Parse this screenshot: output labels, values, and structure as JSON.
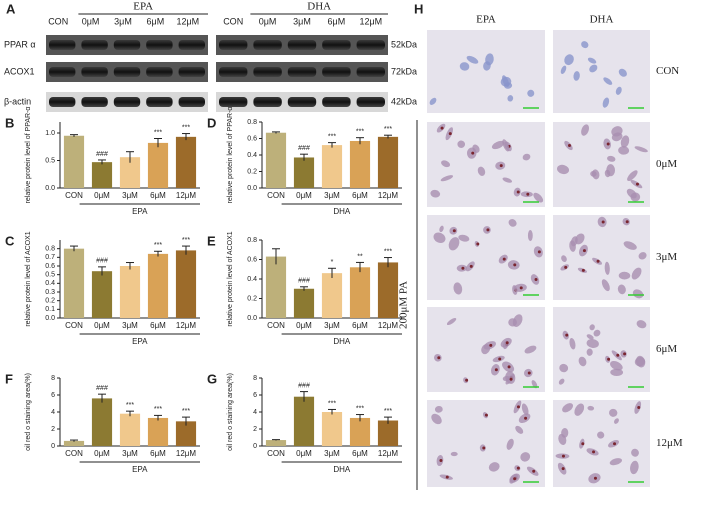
{
  "blot": {
    "label": "A",
    "lanes": [
      "CON",
      "0μM",
      "3μM",
      "6μM",
      "12μM"
    ],
    "groups": [
      "EPA",
      "DHA"
    ],
    "rows": [
      "PPAR α",
      "ACOX1",
      "β-actin"
    ],
    "sizes": [
      "52kDa",
      "72kDa",
      "42kDa"
    ]
  },
  "chart_data": [
    {
      "type": "bar",
      "label": "B",
      "ylabel": "relative protein level of PPAR-α",
      "group": "EPA",
      "categories": [
        "CON",
        "0μM",
        "3μM",
        "6μM",
        "12μM"
      ],
      "values": [
        0.95,
        0.47,
        0.56,
        0.82,
        0.93
      ],
      "errors": [
        0.02,
        0.04,
        0.1,
        0.08,
        0.06
      ],
      "annotations": [
        null,
        "###",
        null,
        "***",
        "***"
      ],
      "colors": [
        "#bdb07a",
        "#8c7a32",
        "#f0c88c",
        "#d9a256",
        "#9c6b2a"
      ],
      "ylim": [
        0,
        1.2
      ],
      "yticks": [
        {
          "value": 0,
          "label": "0.0"
        },
        {
          "value": 0.5,
          "label": "0.5"
        },
        {
          "value": 1,
          "label": "1.0"
        }
      ]
    },
    {
      "type": "bar",
      "label": "D",
      "ylabel": "relative protein level of PPAR-α",
      "group": "DHA",
      "categories": [
        "CON",
        "0μM",
        "3μM",
        "6μM",
        "12μM"
      ],
      "values": [
        0.67,
        0.37,
        0.52,
        0.57,
        0.62
      ],
      "errors": [
        0.01,
        0.04,
        0.03,
        0.04,
        0.02
      ],
      "annotations": [
        null,
        "###",
        "***",
        "***",
        "***"
      ],
      "colors": [
        "#bdb07a",
        "#8c7a32",
        "#f0c88c",
        "#d9a256",
        "#9c6b2a"
      ],
      "ylim": [
        0,
        0.8
      ],
      "yticks": [
        {
          "value": 0,
          "label": "0.0"
        },
        0.2,
        0.4,
        0.6,
        0.8
      ]
    },
    {
      "type": "bar",
      "label": "C",
      "ylabel": "relative protein level of ACOX1",
      "group": "EPA",
      "categories": [
        "CON",
        "0μM",
        "3μM",
        "6μM",
        "12μM"
      ],
      "values": [
        0.8,
        0.54,
        0.6,
        0.74,
        0.78
      ],
      "errors": [
        0.03,
        0.05,
        0.04,
        0.03,
        0.05
      ],
      "annotations": [
        null,
        "###",
        null,
        "***",
        "***"
      ],
      "colors": [
        "#bdb07a",
        "#8c7a32",
        "#f0c88c",
        "#d9a256",
        "#9c6b2a"
      ],
      "ylim": [
        0,
        0.9
      ],
      "yticks": [
        {
          "value": 0,
          "label": "0.0"
        },
        0.1,
        0.2,
        0.3,
        0.4,
        0.5,
        0.6,
        0.7,
        0.8
      ]
    },
    {
      "type": "bar",
      "label": "E",
      "ylabel": "relative protein level of ACOX1",
      "group": "DHA",
      "categories": [
        "CON",
        "0μM",
        "3μM",
        "6μM",
        "12μM"
      ],
      "values": [
        0.63,
        0.3,
        0.46,
        0.52,
        0.57
      ],
      "errors": [
        0.08,
        0.02,
        0.05,
        0.05,
        0.05
      ],
      "annotations": [
        null,
        "###",
        "*",
        "**",
        "***"
      ],
      "colors": [
        "#bdb07a",
        "#8c7a32",
        "#f0c88c",
        "#d9a256",
        "#9c6b2a"
      ],
      "ylim": [
        0,
        0.8
      ],
      "yticks": [
        {
          "value": 0,
          "label": "0.0"
        },
        0.2,
        0.4,
        0.6,
        0.8
      ]
    },
    {
      "type": "bar",
      "label": "F",
      "ylabel": "oil red o staining area(%)",
      "group": "EPA",
      "categories": [
        "CON",
        "0μM",
        "3μM",
        "6μM",
        "12μM"
      ],
      "values": [
        0.6,
        5.6,
        3.8,
        3.3,
        2.9
      ],
      "errors": [
        0.1,
        0.5,
        0.3,
        0.3,
        0.5
      ],
      "annotations": [
        null,
        "###",
        "***",
        "***",
        "***"
      ],
      "colors": [
        "#bdb07a",
        "#8c7a32",
        "#f0c88c",
        "#d9a256",
        "#9c6b2a"
      ],
      "ylim": [
        0,
        8
      ],
      "yticks": [
        0,
        2,
        4,
        6,
        8
      ]
    },
    {
      "type": "bar",
      "label": "G",
      "ylabel": "oil red o staining area(%)",
      "group": "DHA",
      "categories": [
        "CON",
        "0μM",
        "3μM",
        "6μM",
        "12μM"
      ],
      "values": [
        0.7,
        5.8,
        4.0,
        3.3,
        3.0
      ],
      "errors": [
        0.05,
        0.6,
        0.3,
        0.4,
        0.4
      ],
      "annotations": [
        null,
        "###",
        "***",
        "***",
        "***"
      ],
      "colors": [
        "#bdb07a",
        "#8c7a32",
        "#f0c88c",
        "#d9a256",
        "#9c6b2a"
      ],
      "ylim": [
        0,
        8
      ],
      "yticks": [
        0,
        2,
        4,
        6,
        8
      ]
    }
  ],
  "staining": {
    "label": "H",
    "columns": [
      "EPA",
      "DHA"
    ],
    "rows": [
      "CON",
      "0μM",
      "3μM",
      "6μM",
      "12μM"
    ],
    "treatment": "200μM PA"
  }
}
